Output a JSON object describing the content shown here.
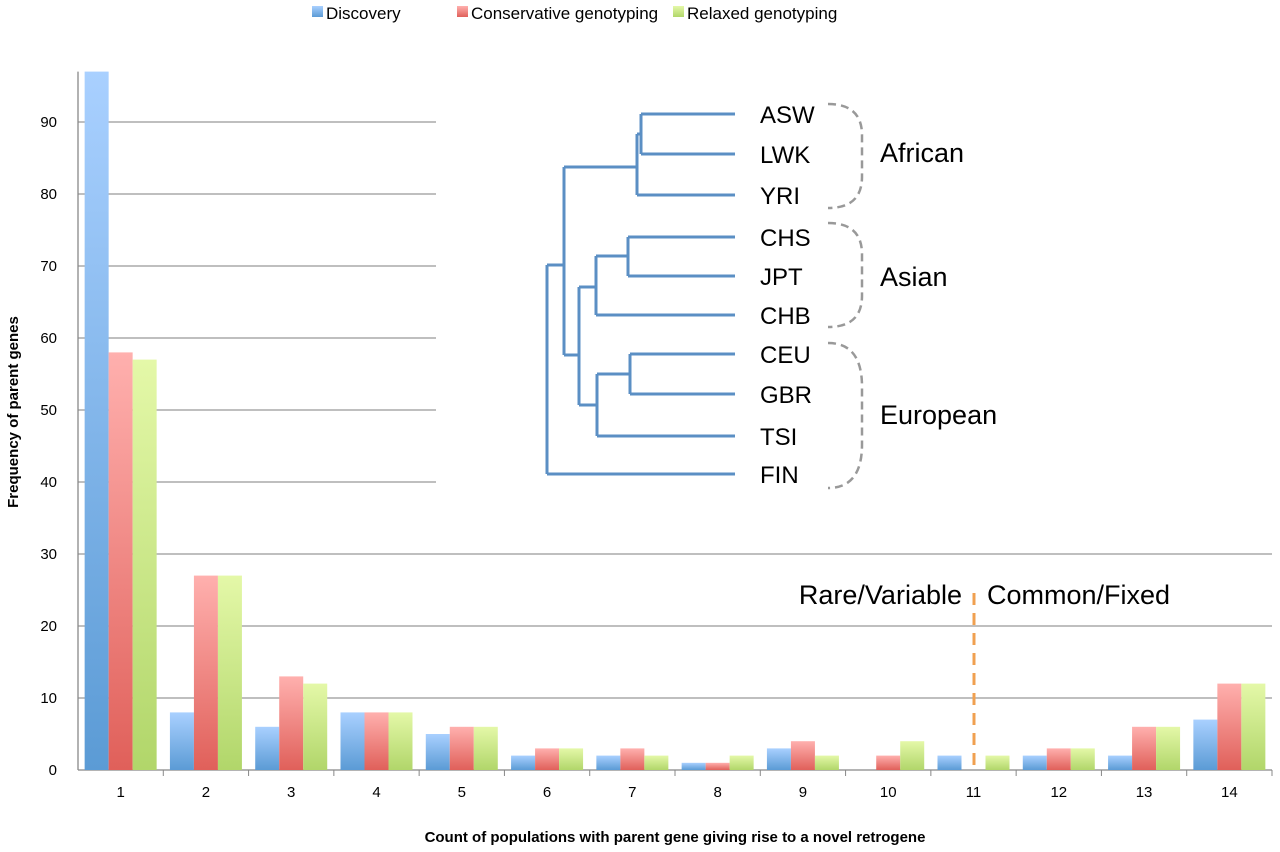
{
  "chart_data": {
    "type": "bar",
    "xlabel": "Count of populations with parent gene giving rise to a novel retrogene",
    "ylabel": "Frequency of parent genes",
    "categories": [
      "1",
      "2",
      "3",
      "4",
      "5",
      "6",
      "7",
      "8",
      "9",
      "10",
      "11",
      "12",
      "13",
      "14"
    ],
    "yticks": [
      0,
      10,
      20,
      30,
      40,
      50,
      60,
      70,
      80,
      90
    ],
    "ylim": [
      0,
      97
    ],
    "grid": true,
    "legend_position": "top",
    "series": [
      {
        "name": "Discovery",
        "color": "#5b9bd5",
        "values": [
          97,
          8,
          6,
          8,
          5,
          2,
          2,
          1,
          3,
          0,
          2,
          2,
          2,
          7
        ]
      },
      {
        "name": "Conservative genotyping",
        "color": "#e0605a",
        "values": [
          58,
          27,
          13,
          8,
          6,
          3,
          3,
          1,
          4,
          2,
          0,
          3,
          6,
          12
        ]
      },
      {
        "name": "Relaxed genotyping",
        "color": "#b1d66a",
        "values": [
          57,
          27,
          12,
          8,
          6,
          3,
          2,
          2,
          2,
          4,
          2,
          3,
          6,
          12
        ]
      }
    ],
    "annotations": {
      "divider_color": "#f0a050",
      "left_label": "Rare/Variable",
      "right_label": "Common/Fixed"
    },
    "inset_tree": {
      "color": "#5b8fc4",
      "leaves": [
        "ASW",
        "LWK",
        "YRI",
        "CHS",
        "JPT",
        "CHB",
        "CEU",
        "GBR",
        "TSI",
        "FIN"
      ],
      "groups": [
        "African",
        "Asian",
        "European"
      ]
    }
  }
}
